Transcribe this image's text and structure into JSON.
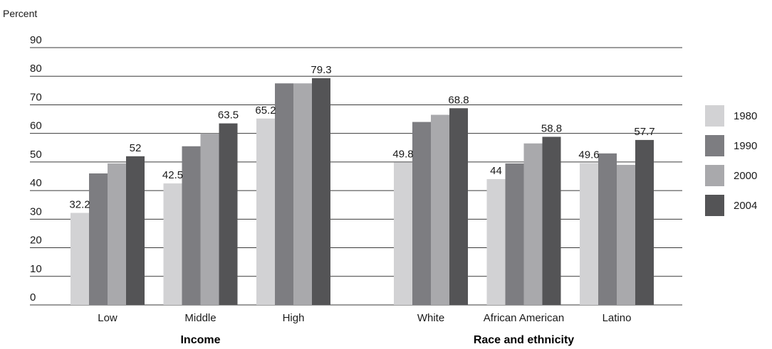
{
  "chart_data": {
    "type": "bar",
    "ylabel": "Percent",
    "ylim": [
      0,
      90
    ],
    "yticks": [
      0,
      10,
      20,
      30,
      40,
      50,
      60,
      70,
      80,
      90
    ],
    "grid": true,
    "legend_position": "right",
    "series": [
      {
        "name": "1980",
        "color": "#d2d2d4"
      },
      {
        "name": "1990",
        "color": "#7d7d81"
      },
      {
        "name": "2000",
        "color": "#a9a9ac"
      },
      {
        "name": "2004",
        "color": "#545456"
      }
    ],
    "groups": [
      {
        "label": "Income",
        "categories": [
          {
            "label": "Low",
            "values": [
              32.2,
              46.0,
              49.5,
              52.0
            ],
            "labels": [
              "32.2",
              "",
              "",
              "52"
            ]
          },
          {
            "label": "Middle",
            "values": [
              42.5,
              55.5,
              60.0,
              63.5
            ],
            "labels": [
              "42.5",
              "",
              "",
              "63.5"
            ]
          },
          {
            "label": "High",
            "values": [
              65.2,
              77.5,
              77.5,
              79.3
            ],
            "labels": [
              "65.2",
              "",
              "",
              "79.3"
            ]
          }
        ]
      },
      {
        "label": "Race and ethnicity",
        "categories": [
          {
            "label": "White",
            "values": [
              49.8,
              64.0,
              66.5,
              68.8
            ],
            "labels": [
              "49.8",
              "",
              "",
              "68.8"
            ]
          },
          {
            "label": "African American",
            "values": [
              44.0,
              49.5,
              56.5,
              58.8
            ],
            "labels": [
              "44",
              "",
              "",
              "58.8"
            ]
          },
          {
            "label": "Latino",
            "values": [
              49.6,
              53.0,
              49.0,
              57.7
            ],
            "labels": [
              "49.6",
              "",
              "",
              "57.7"
            ]
          }
        ]
      }
    ]
  }
}
